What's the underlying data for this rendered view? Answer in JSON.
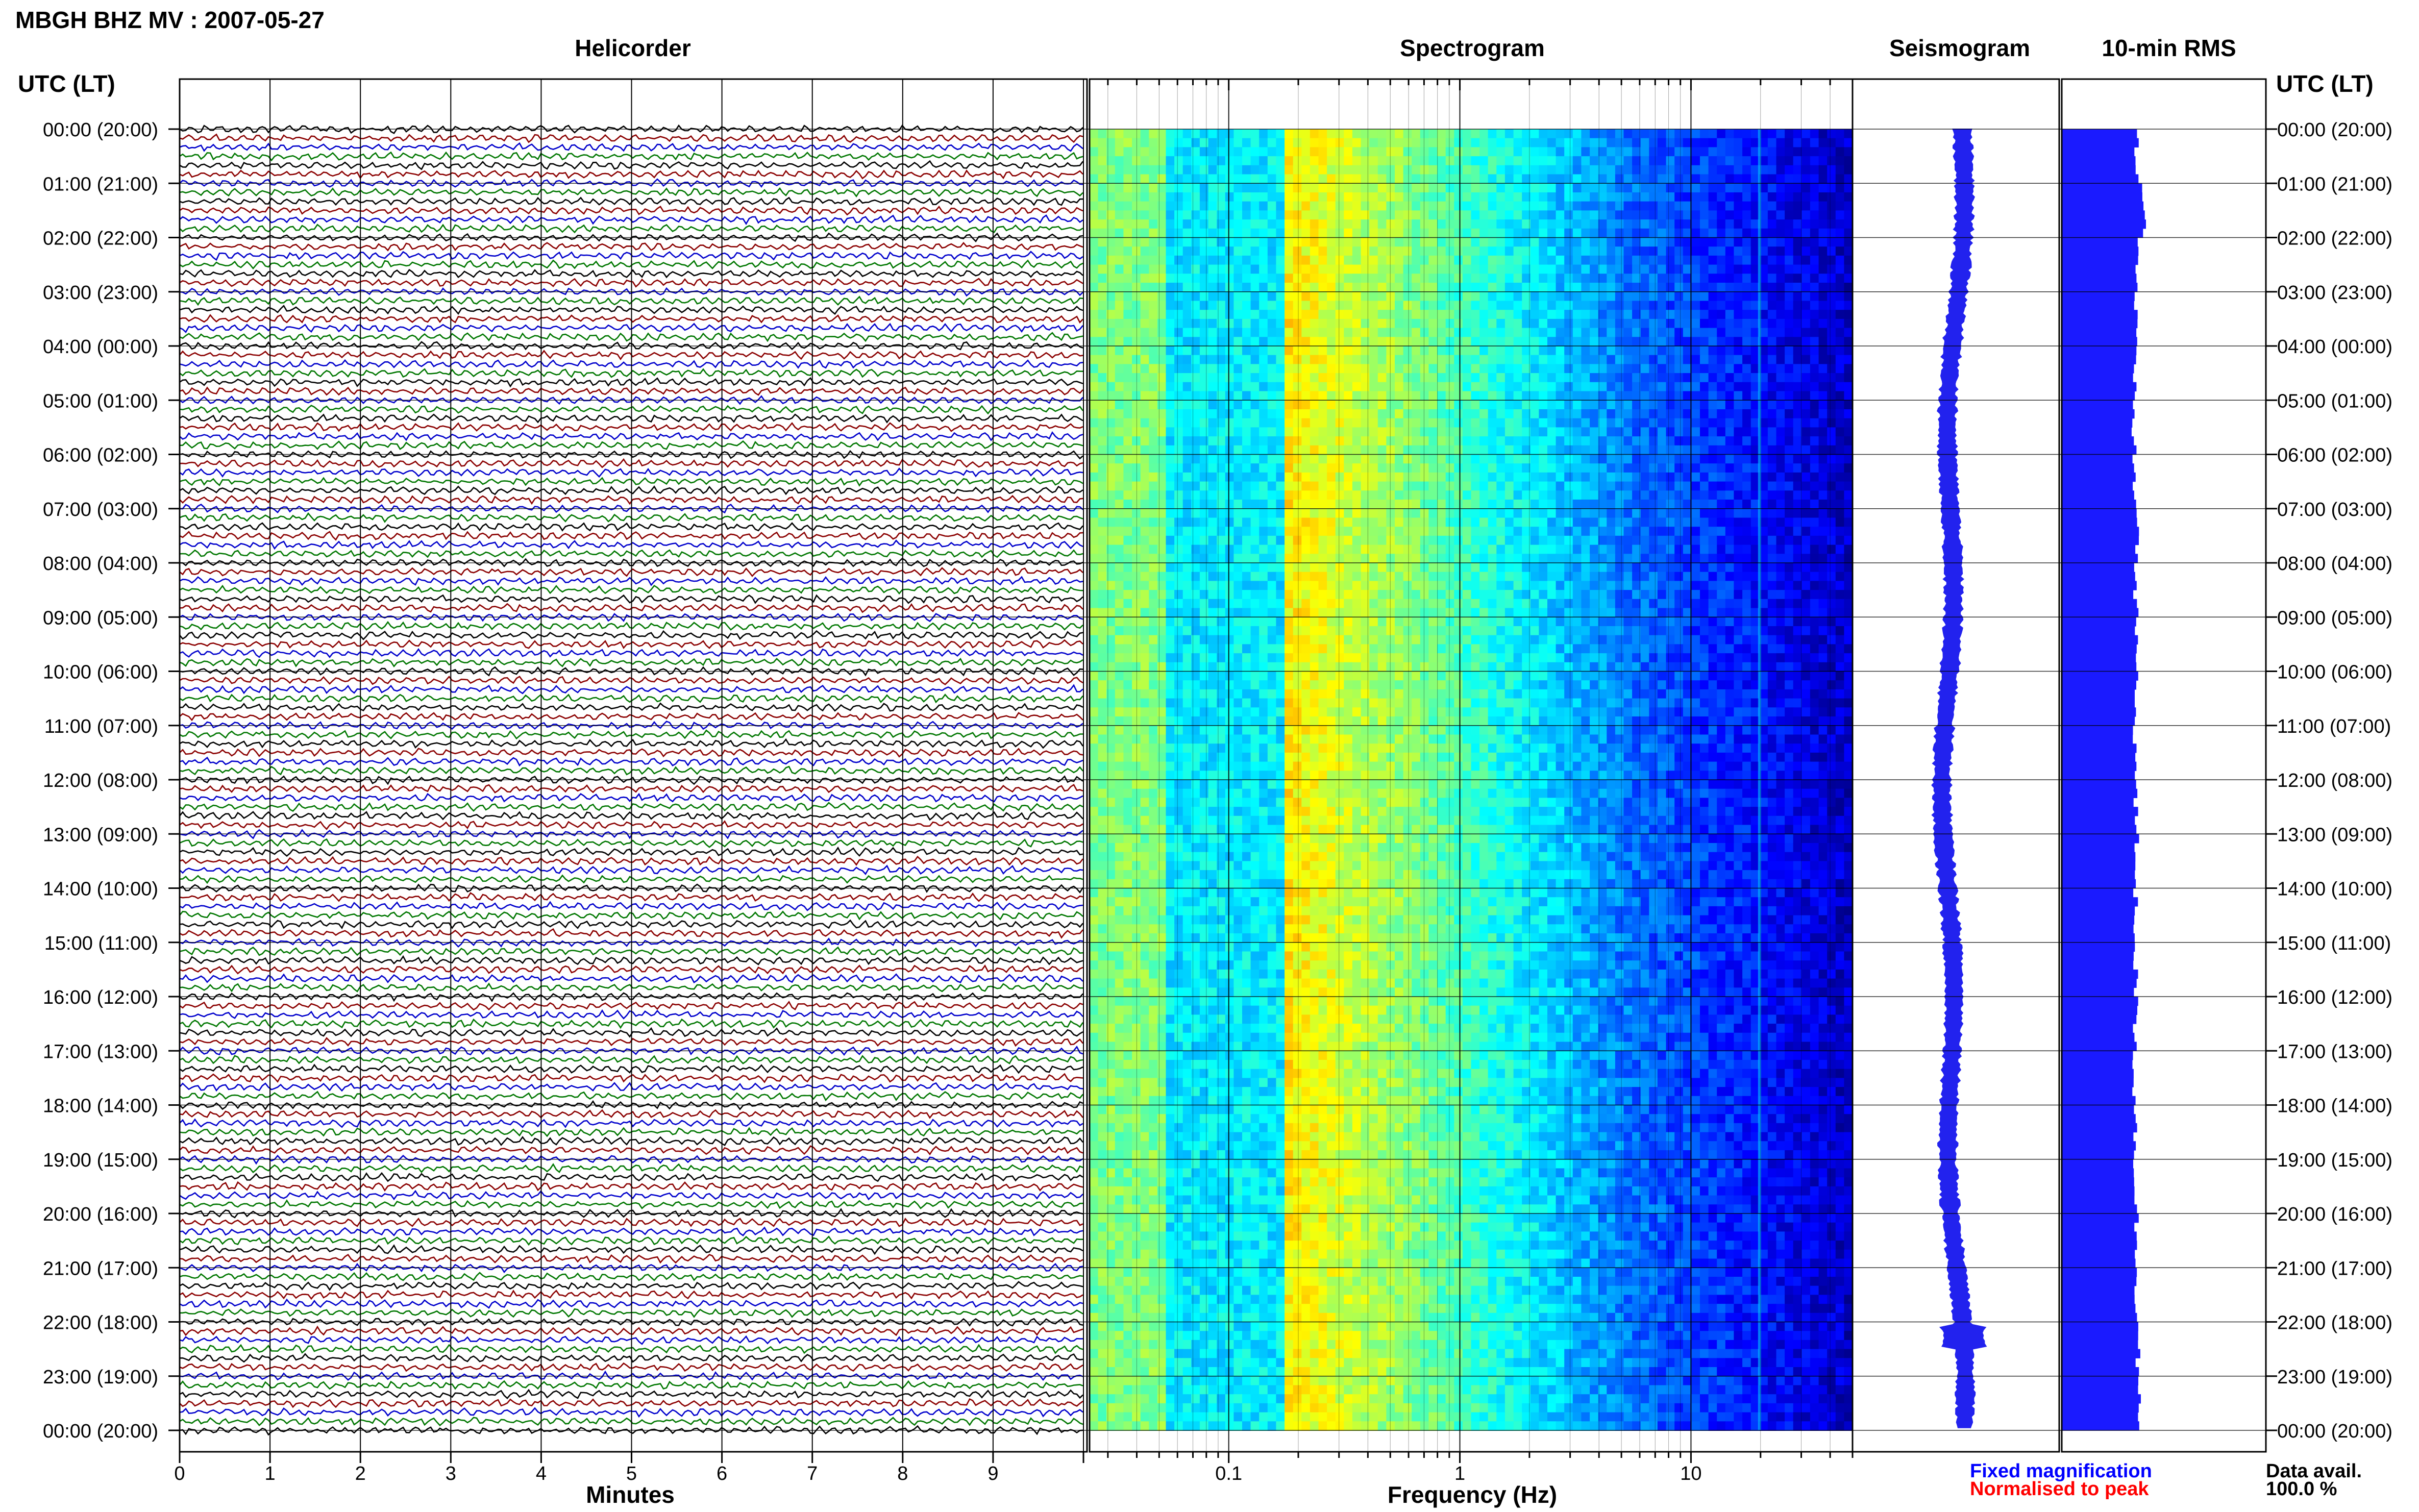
{
  "title": "MBGH BHZ MV : 2007-05-27",
  "headers": {
    "helicorder": "Helicorder",
    "spectrogram": "Spectrogram",
    "seismogram": "Seismogram",
    "rms": "10-min RMS"
  },
  "axis_time_title": "UTC (LT)",
  "time_labels": [
    "00:00 (20:00)",
    "01:00 (21:00)",
    "02:00 (22:00)",
    "03:00 (23:00)",
    "04:00 (00:00)",
    "05:00 (01:00)",
    "06:00 (02:00)",
    "07:00 (03:00)",
    "08:00 (04:00)",
    "09:00 (05:00)",
    "10:00 (06:00)",
    "11:00 (07:00)",
    "12:00 (08:00)",
    "13:00 (09:00)",
    "14:00 (10:00)",
    "15:00 (11:00)",
    "16:00 (12:00)",
    "17:00 (13:00)",
    "18:00 (14:00)",
    "19:00 (15:00)",
    "20:00 (16:00)",
    "21:00 (17:00)",
    "22:00 (18:00)",
    "23:00 (19:00)",
    "00:00 (20:00)"
  ],
  "x_labels": {
    "minutes": "Minutes",
    "frequency": "Frequency (Hz)"
  },
  "minute_ticks": [
    "0",
    "1",
    "2",
    "3",
    "4",
    "5",
    "6",
    "7",
    "8",
    "9"
  ],
  "freq_ticks": [
    "0.1",
    "1",
    "10"
  ],
  "legend": {
    "fixed": "Fixed magnification",
    "normalised": "Normalised to peak",
    "fixed_color": "#0000ff",
    "normalised_color": "#ff0000"
  },
  "data_avail": {
    "label": "Data avail.",
    "value": "100.0 %"
  },
  "colors": {
    "helicorder_traces": [
      "#000000",
      "#8b0000",
      "#0000cc",
      "#007700"
    ],
    "rms_bar": "#1a1aff",
    "seismogram": "#2222ee"
  },
  "chart_data": [
    {
      "type": "line",
      "name": "helicorder",
      "xlabel": "Minutes",
      "x_range": [
        0,
        10
      ],
      "rows_per_hour": 6,
      "hours": 24,
      "line_color_cycle": [
        "black",
        "darkred",
        "blue",
        "green"
      ]
    },
    {
      "type": "heatmap",
      "name": "spectrogram",
      "xlabel": "Frequency (Hz)",
      "x_scale": "log",
      "x_range": [
        0.025,
        50
      ],
      "y_range_hours": [
        0,
        24
      ],
      "colormap": "jet"
    },
    {
      "type": "line",
      "name": "seismogram",
      "orientation": "vertical",
      "y_range_hours": [
        0,
        24
      ]
    },
    {
      "type": "bar",
      "name": "10-min RMS",
      "orientation": "horizontal",
      "bins_per_hour": 6,
      "hourly_relative_level": [
        0.85,
        0.95,
        0.86,
        0.84,
        0.82,
        0.82,
        0.83,
        0.86,
        0.84,
        0.85,
        0.84,
        0.84,
        0.84,
        0.85,
        0.84,
        0.84,
        0.84,
        0.83,
        0.84,
        0.84,
        0.85,
        0.86,
        0.87,
        0.87
      ]
    }
  ]
}
